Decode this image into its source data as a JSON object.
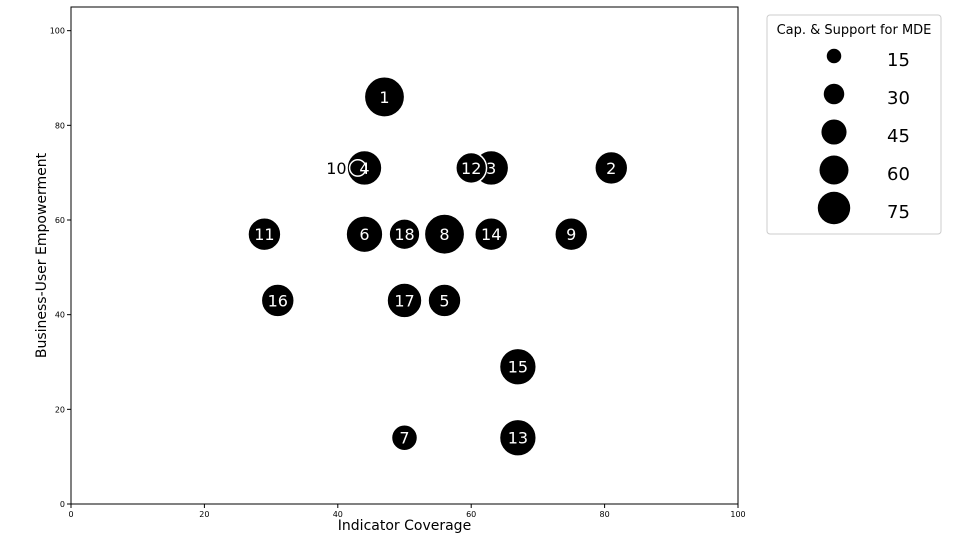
{
  "chart_data": {
    "type": "scatter",
    "xlabel": "Indicator Coverage",
    "ylabel": "Business-User Empowerment",
    "xlim": [
      0,
      100
    ],
    "ylim": [
      0,
      105
    ],
    "xticks": [
      0,
      20,
      40,
      60,
      80,
      100
    ],
    "yticks": [
      0,
      20,
      40,
      60,
      80,
      100
    ],
    "grid": false,
    "size_legend": {
      "title": "Cap. & Support for MDE",
      "placement": "outside-right-top",
      "values": [
        15,
        30,
        45,
        60,
        75
      ]
    },
    "points": [
      {
        "label": "1",
        "x": 47,
        "y": 86,
        "size": 60
      },
      {
        "label": "2",
        "x": 81,
        "y": 71,
        "size": 40
      },
      {
        "label": "3",
        "x": 63,
        "y": 71,
        "size": 45
      },
      {
        "label": "4",
        "x": 44,
        "y": 71,
        "size": 45
      },
      {
        "label": "5",
        "x": 56,
        "y": 43,
        "size": 40
      },
      {
        "label": "6",
        "x": 44,
        "y": 57,
        "size": 50
      },
      {
        "label": "7",
        "x": 50,
        "y": 14,
        "size": 25
      },
      {
        "label": "8",
        "x": 56,
        "y": 57,
        "size": 60
      },
      {
        "label": "9",
        "x": 75,
        "y": 57,
        "size": 40
      },
      {
        "label": "10",
        "x": 43,
        "y": 71,
        "size": 10
      },
      {
        "label": "11",
        "x": 29,
        "y": 57,
        "size": 40
      },
      {
        "label": "12",
        "x": 60,
        "y": 71,
        "size": 35
      },
      {
        "label": "13",
        "x": 67,
        "y": 14,
        "size": 50
      },
      {
        "label": "14",
        "x": 63,
        "y": 57,
        "size": 40
      },
      {
        "label": "15",
        "x": 67,
        "y": 29,
        "size": 50
      },
      {
        "label": "16",
        "x": 31,
        "y": 43,
        "size": 40
      },
      {
        "label": "17",
        "x": 50,
        "y": 43,
        "size": 45
      },
      {
        "label": "18",
        "x": 50,
        "y": 57,
        "size": 35
      }
    ],
    "colors": {
      "bubble": "#000000",
      "bubble_text": "#ffffff",
      "outline": "#ffffff"
    }
  }
}
